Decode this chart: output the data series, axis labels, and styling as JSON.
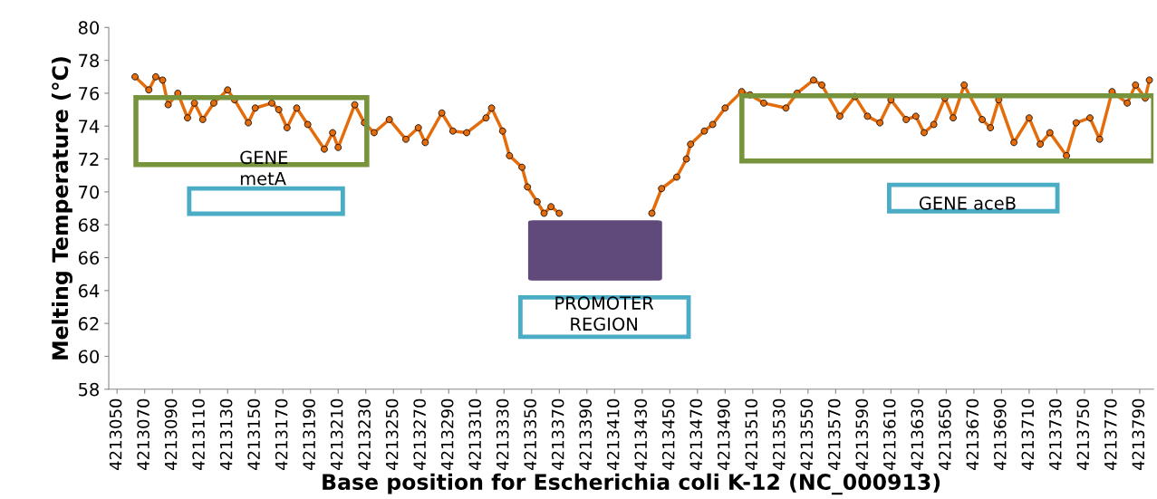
{
  "chart_data": {
    "type": "line",
    "xlabel": "Base position for Escherichia coli K-12 (NC_000913)",
    "ylabel": "Melting Temperature (°C)",
    "annotations": [
      "GENE metA",
      "PROMOTER REGION",
      "GENE aceB"
    ],
    "xlim": [
      4213044,
      4213800
    ],
    "xticks": [
      4213050,
      4213070,
      4213090,
      4213110,
      4213130,
      4213150,
      4213170,
      4213190,
      4213210,
      4213230,
      4213250,
      4213270,
      4213290,
      4213310,
      4213330,
      4213350,
      4213370,
      4213390,
      4213410,
      4213430,
      4213450,
      4213470,
      4213490,
      4213510,
      4213530,
      4213550,
      4213570,
      4213590,
      4213610,
      4213630,
      4213650,
      4213670,
      4213690,
      4213710,
      4213730,
      4213750,
      4213770,
      4213790
    ],
    "ylim": [
      58,
      80
    ],
    "yticks": [
      58,
      60,
      62,
      64,
      66,
      68,
      70,
      72,
      74,
      76,
      78,
      80
    ],
    "grid": false,
    "marker": "circle",
    "line_style": "solid",
    "series": [
      {
        "color": "#e46c0a",
        "x": [
          4213063,
          4213073,
          4213078,
          4213083,
          4213087,
          4213094,
          4213101,
          4213106,
          4213112,
          4213120,
          4213130,
          4213135,
          4213145,
          4213150,
          4213162,
          4213167,
          4213173,
          4213180,
          4213188,
          4213200,
          4213206,
          4213210,
          4213222,
          4213229,
          4213236,
          4213247,
          4213259,
          4213268,
          4213273,
          4213285,
          4213293,
          4213303,
          4213317,
          4213321,
          4213329,
          4213334,
          4213343,
          4213347,
          4213354,
          4213359,
          4213364,
          4213370,
          4213400,
          4213437,
          4213444,
          4213455,
          4213462,
          4213465,
          4213475,
          4213481,
          4213490,
          4213502,
          4213508,
          4213518,
          4213534,
          4213542,
          4213554,
          4213560,
          4213573,
          4213584,
          4213593,
          4213602,
          4213610,
          4213621,
          4213628,
          4213634,
          4213641,
          4213649,
          4213655,
          4213663,
          4213676,
          4213682,
          4213688,
          4213699,
          4213710,
          4213718,
          4213725,
          4213737,
          4213744,
          4213754,
          4213761,
          4213770,
          4213781,
          4213787,
          4213794,
          4213797
        ],
        "values": [
          77.0,
          76.2,
          77.0,
          76.8,
          75.3,
          76.0,
          74.5,
          75.4,
          74.4,
          75.4,
          76.2,
          75.6,
          74.2,
          75.1,
          75.4,
          75.0,
          73.9,
          75.1,
          74.1,
          72.6,
          73.6,
          72.7,
          75.3,
          74.2,
          73.6,
          74.4,
          73.2,
          73.9,
          73.0,
          74.8,
          73.7,
          73.6,
          74.5,
          75.1,
          73.7,
          72.2,
          71.5,
          70.3,
          69.4,
          68.7,
          69.1,
          68.7,
          null,
          68.7,
          70.2,
          70.9,
          72.0,
          72.9,
          73.7,
          74.1,
          75.1,
          76.1,
          75.9,
          75.4,
          75.1,
          76.0,
          76.8,
          76.5,
          74.6,
          75.8,
          74.6,
          74.2,
          75.6,
          74.4,
          74.6,
          73.6,
          74.1,
          75.7,
          74.5,
          76.5,
          74.4,
          73.9,
          75.6,
          73.0,
          74.5,
          72.9,
          73.6,
          72.2,
          74.2,
          74.5,
          73.2,
          76.1,
          75.4,
          76.5,
          75.7,
          76.8
        ]
      }
    ]
  }
}
